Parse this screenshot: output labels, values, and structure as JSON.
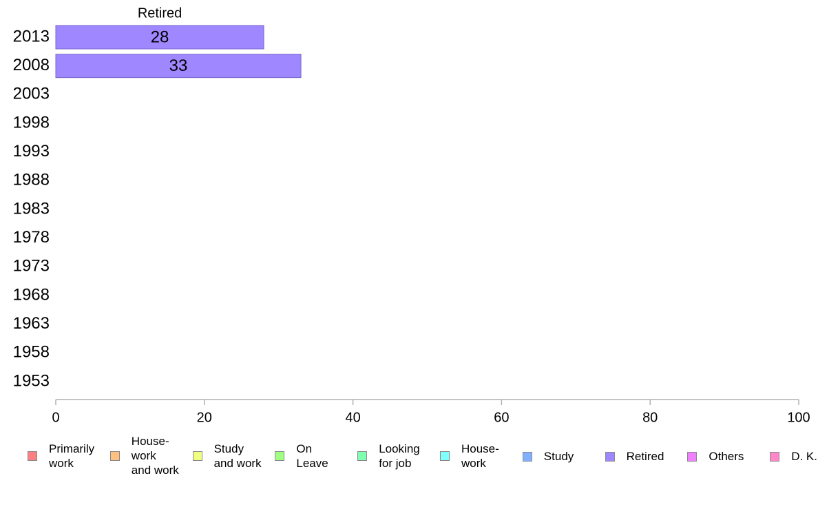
{
  "chart_data": {
    "type": "bar",
    "orientation": "horizontal",
    "stacked": true,
    "categories": [
      "2013",
      "2008",
      "2003",
      "1998",
      "1993",
      "1988",
      "1983",
      "1978",
      "1973",
      "1968",
      "1963",
      "1958",
      "1953"
    ],
    "series": [
      {
        "name": "Primarily\nwork",
        "color": "#ff8080",
        "values": [
          null,
          null,
          null,
          null,
          null,
          null,
          null,
          null,
          null,
          null,
          null,
          null,
          null
        ]
      },
      {
        "name": "House-\nwork\nand work",
        "color": "#ffc080",
        "values": [
          null,
          null,
          null,
          null,
          null,
          null,
          null,
          null,
          null,
          null,
          null,
          null,
          null
        ]
      },
      {
        "name": "Study\nand work",
        "color": "#f0ff80",
        "values": [
          null,
          null,
          null,
          null,
          null,
          null,
          null,
          null,
          null,
          null,
          null,
          null,
          null
        ]
      },
      {
        "name": "On\nLeave",
        "color": "#a0ff80",
        "values": [
          null,
          null,
          null,
          null,
          null,
          null,
          null,
          null,
          null,
          null,
          null,
          null,
          null
        ]
      },
      {
        "name": "Looking\nfor job",
        "color": "#80ffb0",
        "values": [
          null,
          null,
          null,
          null,
          null,
          null,
          null,
          null,
          null,
          null,
          null,
          null,
          null
        ]
      },
      {
        "name": "House-\nwork",
        "color": "#80ffff",
        "values": [
          null,
          null,
          null,
          null,
          null,
          null,
          null,
          null,
          null,
          null,
          null,
          null,
          null
        ]
      },
      {
        "name": "Study",
        "color": "#80b0ff",
        "values": [
          null,
          null,
          null,
          null,
          null,
          null,
          null,
          null,
          null,
          null,
          null,
          null,
          null
        ]
      },
      {
        "name": "Retired",
        "color": "#9f88ff",
        "values": [
          28,
          33,
          null,
          null,
          null,
          null,
          null,
          null,
          null,
          null,
          null,
          null,
          null
        ]
      },
      {
        "name": "Others",
        "color": "#f080ff",
        "values": [
          null,
          null,
          null,
          null,
          null,
          null,
          null,
          null,
          null,
          null,
          null,
          null,
          null
        ]
      },
      {
        "name": "D. K.",
        "color": "#ff88c8",
        "values": [
          null,
          null,
          null,
          null,
          null,
          null,
          null,
          null,
          null,
          null,
          null,
          null,
          null
        ]
      }
    ],
    "column_header": "Retired",
    "xlim": [
      0,
      100
    ],
    "xticks": [
      0,
      20,
      40,
      60,
      80,
      100
    ],
    "grid": false,
    "legend_position": "bottom"
  }
}
